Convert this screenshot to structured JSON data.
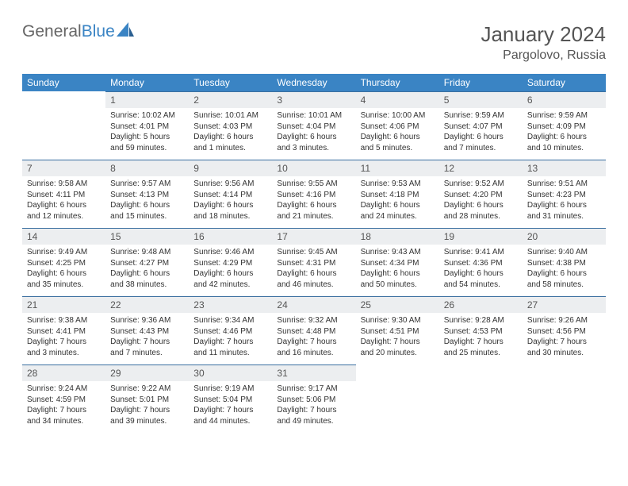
{
  "brand": {
    "part1": "General",
    "part2": "Blue"
  },
  "title": "January 2024",
  "location": "Pargolovo, Russia",
  "colors": {
    "header_bg": "#3a84c4",
    "header_fg": "#ffffff",
    "daynum_bg": "#eceef0",
    "rule": "#3a6fa0",
    "text": "#333333",
    "page_bg": "#ffffff"
  },
  "weekdays": [
    "Sunday",
    "Monday",
    "Tuesday",
    "Wednesday",
    "Thursday",
    "Friday",
    "Saturday"
  ],
  "weeks": [
    [
      {
        "empty": true
      },
      {
        "n": "1",
        "sr": "Sunrise: 10:02 AM",
        "ss": "Sunset: 4:01 PM",
        "dl1": "Daylight: 5 hours",
        "dl2": "and 59 minutes."
      },
      {
        "n": "2",
        "sr": "Sunrise: 10:01 AM",
        "ss": "Sunset: 4:03 PM",
        "dl1": "Daylight: 6 hours",
        "dl2": "and 1 minutes."
      },
      {
        "n": "3",
        "sr": "Sunrise: 10:01 AM",
        "ss": "Sunset: 4:04 PM",
        "dl1": "Daylight: 6 hours",
        "dl2": "and 3 minutes."
      },
      {
        "n": "4",
        "sr": "Sunrise: 10:00 AM",
        "ss": "Sunset: 4:06 PM",
        "dl1": "Daylight: 6 hours",
        "dl2": "and 5 minutes."
      },
      {
        "n": "5",
        "sr": "Sunrise: 9:59 AM",
        "ss": "Sunset: 4:07 PM",
        "dl1": "Daylight: 6 hours",
        "dl2": "and 7 minutes."
      },
      {
        "n": "6",
        "sr": "Sunrise: 9:59 AM",
        "ss": "Sunset: 4:09 PM",
        "dl1": "Daylight: 6 hours",
        "dl2": "and 10 minutes."
      }
    ],
    [
      {
        "n": "7",
        "sr": "Sunrise: 9:58 AM",
        "ss": "Sunset: 4:11 PM",
        "dl1": "Daylight: 6 hours",
        "dl2": "and 12 minutes."
      },
      {
        "n": "8",
        "sr": "Sunrise: 9:57 AM",
        "ss": "Sunset: 4:13 PM",
        "dl1": "Daylight: 6 hours",
        "dl2": "and 15 minutes."
      },
      {
        "n": "9",
        "sr": "Sunrise: 9:56 AM",
        "ss": "Sunset: 4:14 PM",
        "dl1": "Daylight: 6 hours",
        "dl2": "and 18 minutes."
      },
      {
        "n": "10",
        "sr": "Sunrise: 9:55 AM",
        "ss": "Sunset: 4:16 PM",
        "dl1": "Daylight: 6 hours",
        "dl2": "and 21 minutes."
      },
      {
        "n": "11",
        "sr": "Sunrise: 9:53 AM",
        "ss": "Sunset: 4:18 PM",
        "dl1": "Daylight: 6 hours",
        "dl2": "and 24 minutes."
      },
      {
        "n": "12",
        "sr": "Sunrise: 9:52 AM",
        "ss": "Sunset: 4:20 PM",
        "dl1": "Daylight: 6 hours",
        "dl2": "and 28 minutes."
      },
      {
        "n": "13",
        "sr": "Sunrise: 9:51 AM",
        "ss": "Sunset: 4:23 PM",
        "dl1": "Daylight: 6 hours",
        "dl2": "and 31 minutes."
      }
    ],
    [
      {
        "n": "14",
        "sr": "Sunrise: 9:49 AM",
        "ss": "Sunset: 4:25 PM",
        "dl1": "Daylight: 6 hours",
        "dl2": "and 35 minutes."
      },
      {
        "n": "15",
        "sr": "Sunrise: 9:48 AM",
        "ss": "Sunset: 4:27 PM",
        "dl1": "Daylight: 6 hours",
        "dl2": "and 38 minutes."
      },
      {
        "n": "16",
        "sr": "Sunrise: 9:46 AM",
        "ss": "Sunset: 4:29 PM",
        "dl1": "Daylight: 6 hours",
        "dl2": "and 42 minutes."
      },
      {
        "n": "17",
        "sr": "Sunrise: 9:45 AM",
        "ss": "Sunset: 4:31 PM",
        "dl1": "Daylight: 6 hours",
        "dl2": "and 46 minutes."
      },
      {
        "n": "18",
        "sr": "Sunrise: 9:43 AM",
        "ss": "Sunset: 4:34 PM",
        "dl1": "Daylight: 6 hours",
        "dl2": "and 50 minutes."
      },
      {
        "n": "19",
        "sr": "Sunrise: 9:41 AM",
        "ss": "Sunset: 4:36 PM",
        "dl1": "Daylight: 6 hours",
        "dl2": "and 54 minutes."
      },
      {
        "n": "20",
        "sr": "Sunrise: 9:40 AM",
        "ss": "Sunset: 4:38 PM",
        "dl1": "Daylight: 6 hours",
        "dl2": "and 58 minutes."
      }
    ],
    [
      {
        "n": "21",
        "sr": "Sunrise: 9:38 AM",
        "ss": "Sunset: 4:41 PM",
        "dl1": "Daylight: 7 hours",
        "dl2": "and 3 minutes."
      },
      {
        "n": "22",
        "sr": "Sunrise: 9:36 AM",
        "ss": "Sunset: 4:43 PM",
        "dl1": "Daylight: 7 hours",
        "dl2": "and 7 minutes."
      },
      {
        "n": "23",
        "sr": "Sunrise: 9:34 AM",
        "ss": "Sunset: 4:46 PM",
        "dl1": "Daylight: 7 hours",
        "dl2": "and 11 minutes."
      },
      {
        "n": "24",
        "sr": "Sunrise: 9:32 AM",
        "ss": "Sunset: 4:48 PM",
        "dl1": "Daylight: 7 hours",
        "dl2": "and 16 minutes."
      },
      {
        "n": "25",
        "sr": "Sunrise: 9:30 AM",
        "ss": "Sunset: 4:51 PM",
        "dl1": "Daylight: 7 hours",
        "dl2": "and 20 minutes."
      },
      {
        "n": "26",
        "sr": "Sunrise: 9:28 AM",
        "ss": "Sunset: 4:53 PM",
        "dl1": "Daylight: 7 hours",
        "dl2": "and 25 minutes."
      },
      {
        "n": "27",
        "sr": "Sunrise: 9:26 AM",
        "ss": "Sunset: 4:56 PM",
        "dl1": "Daylight: 7 hours",
        "dl2": "and 30 minutes."
      }
    ],
    [
      {
        "n": "28",
        "sr": "Sunrise: 9:24 AM",
        "ss": "Sunset: 4:59 PM",
        "dl1": "Daylight: 7 hours",
        "dl2": "and 34 minutes."
      },
      {
        "n": "29",
        "sr": "Sunrise: 9:22 AM",
        "ss": "Sunset: 5:01 PM",
        "dl1": "Daylight: 7 hours",
        "dl2": "and 39 minutes."
      },
      {
        "n": "30",
        "sr": "Sunrise: 9:19 AM",
        "ss": "Sunset: 5:04 PM",
        "dl1": "Daylight: 7 hours",
        "dl2": "and 44 minutes."
      },
      {
        "n": "31",
        "sr": "Sunrise: 9:17 AM",
        "ss": "Sunset: 5:06 PM",
        "dl1": "Daylight: 7 hours",
        "dl2": "and 49 minutes."
      },
      {
        "empty": true
      },
      {
        "empty": true
      },
      {
        "empty": true
      }
    ]
  ]
}
